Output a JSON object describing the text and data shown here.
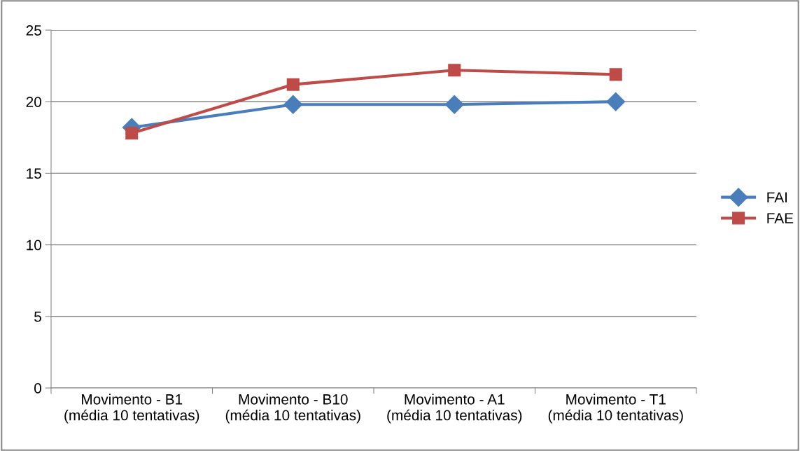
{
  "chart_data": {
    "type": "line",
    "categories": [
      "Movimento - B1\n(média 10 tentativas)",
      "Movimento - B10\n(média 10 tentativas)",
      "Movimento - A1\n(média 10 tentativas)",
      "Movimento - T1\n(média 10 tentativas)"
    ],
    "series": [
      {
        "name": "FAI",
        "color": "#4a7ebb",
        "marker": "diamond",
        "values": [
          18.2,
          19.8,
          19.8,
          20.0
        ]
      },
      {
        "name": "FAE",
        "color": "#be4b48",
        "marker": "square",
        "values": [
          17.8,
          21.2,
          22.2,
          21.9
        ]
      }
    ],
    "ylim": [
      0,
      25
    ],
    "yticks": [
      0,
      5,
      10,
      15,
      20,
      25
    ],
    "grid": "y",
    "legend": "right"
  }
}
